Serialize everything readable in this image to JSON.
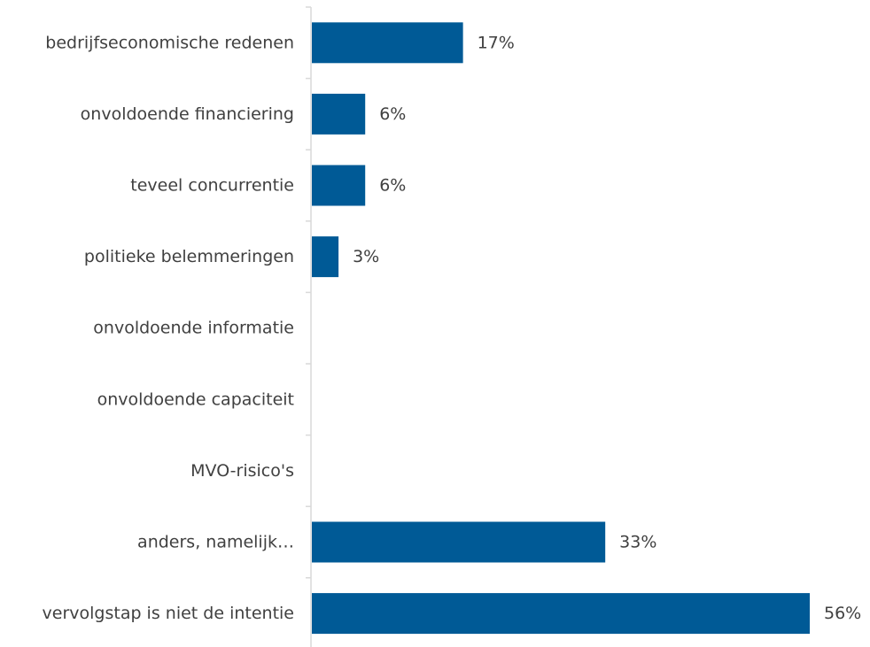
{
  "chart_data": {
    "type": "bar",
    "orientation": "horizontal",
    "title": "",
    "xlabel": "",
    "ylabel": "",
    "categories": [
      "bedrijfseconomische redenen",
      "onvoldoende financiering",
      "teveel concurrentie",
      "politieke belemmeringen",
      "onvoldoende informatie",
      "onvoldoende capaciteit",
      "MVO-risico's",
      "anders, namelijk…",
      "vervolgstap is niet de intentie"
    ],
    "values": [
      17,
      6,
      6,
      3,
      0,
      0,
      0,
      33,
      56
    ],
    "value_labels": [
      "17%",
      "6%",
      "6%",
      "3%",
      "",
      "",
      "",
      "33%",
      "56%"
    ],
    "unit": "%",
    "xlim": [
      0,
      56
    ],
    "grid": false,
    "legend": "none",
    "colors": {
      "bar": "#005A96",
      "axis": "#D9D9D9",
      "text": "#404040"
    }
  }
}
